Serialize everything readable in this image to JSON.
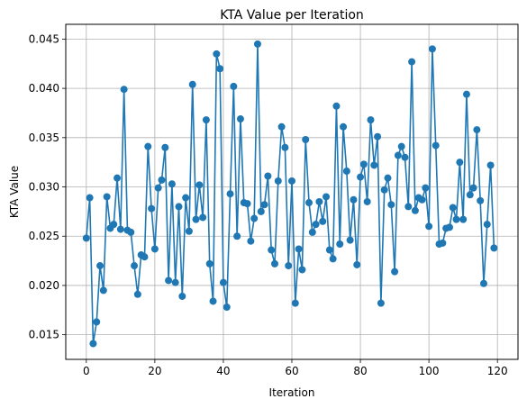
{
  "chart_data": {
    "type": "line",
    "title": "KTA Value per Iteration",
    "xlabel": "Iteration",
    "ylabel": "KTA Value",
    "xlim": [
      -6,
      126
    ],
    "ylim": [
      0.0125,
      0.0465
    ],
    "xticks": [
      0,
      20,
      40,
      60,
      80,
      100,
      120
    ],
    "xtick_labels": [
      "0",
      "20",
      "40",
      "60",
      "80",
      "100",
      "120"
    ],
    "yticks": [
      0.015,
      0.02,
      0.025,
      0.03,
      0.035,
      0.04,
      0.045
    ],
    "ytick_labels": [
      "0.015",
      "0.020",
      "0.025",
      "0.030",
      "0.035",
      "0.040",
      "0.045"
    ],
    "grid": true,
    "color": "#1f77b4",
    "series": [
      {
        "x": [
          0,
          1,
          2,
          3,
          4,
          5,
          6,
          7,
          8,
          9,
          10,
          11,
          12,
          13,
          14,
          15,
          16,
          17,
          18,
          19,
          20,
          21,
          22,
          23,
          24,
          25,
          26,
          27,
          28,
          29,
          30,
          31,
          32,
          33,
          34,
          35,
          36,
          37,
          38,
          39,
          40,
          41,
          42,
          43,
          44,
          45,
          46,
          47,
          48,
          49,
          50,
          51,
          52,
          53,
          54,
          55,
          56,
          57,
          58,
          59,
          60,
          61,
          62,
          63,
          64,
          65,
          66,
          67,
          68,
          69,
          70,
          71,
          72,
          73,
          74,
          75,
          76,
          77,
          78,
          79,
          80,
          81,
          82,
          83,
          84,
          85,
          86,
          87,
          88,
          89,
          90,
          91,
          92,
          93,
          94,
          95,
          96,
          97,
          98,
          99,
          100,
          101,
          102,
          103,
          104,
          105,
          106,
          107,
          108,
          109,
          110,
          111,
          112,
          113,
          114,
          115,
          116,
          117,
          118,
          119
        ],
        "values": [
          0.0248,
          0.0289,
          0.0141,
          0.0163,
          0.022,
          0.0195,
          0.029,
          0.0258,
          0.0262,
          0.0309,
          0.0257,
          0.0399,
          0.0256,
          0.0254,
          0.022,
          0.0191,
          0.0231,
          0.0229,
          0.0341,
          0.0278,
          0.0237,
          0.0299,
          0.0307,
          0.034,
          0.0205,
          0.0303,
          0.0203,
          0.028,
          0.0189,
          0.0289,
          0.0255,
          0.0404,
          0.0267,
          0.0302,
          0.0269,
          0.0368,
          0.0222,
          0.0184,
          0.0435,
          0.042,
          0.0203,
          0.0178,
          0.0293,
          0.0402,
          0.025,
          0.0369,
          0.0284,
          0.0283,
          0.0245,
          0.0268,
          0.0445,
          0.0275,
          0.0282,
          0.0311,
          0.0236,
          0.0222,
          0.0306,
          0.0361,
          0.034,
          0.022,
          0.0306,
          0.0182,
          0.0237,
          0.0216,
          0.0348,
          0.0284,
          0.0254,
          0.0262,
          0.0285,
          0.0265,
          0.029,
          0.0236,
          0.0227,
          0.0382,
          0.0242,
          0.0361,
          0.0316,
          0.0246,
          0.0287,
          0.0221,
          0.031,
          0.0323,
          0.0285,
          0.0368,
          0.0322,
          0.0351,
          0.0182,
          0.0297,
          0.0309,
          0.0282,
          0.0214,
          0.0332,
          0.0341,
          0.033,
          0.028,
          0.0427,
          0.0276,
          0.0289,
          0.0287,
          0.0299,
          0.026,
          0.044,
          0.0342,
          0.0242,
          0.0243,
          0.0258,
          0.0259,
          0.0279,
          0.0267,
          0.0325,
          0.0267,
          0.0394,
          0.0292,
          0.0299,
          0.0358,
          0.0286,
          0.0202,
          0.0262,
          0.0322,
          0.0238
        ]
      }
    ]
  }
}
